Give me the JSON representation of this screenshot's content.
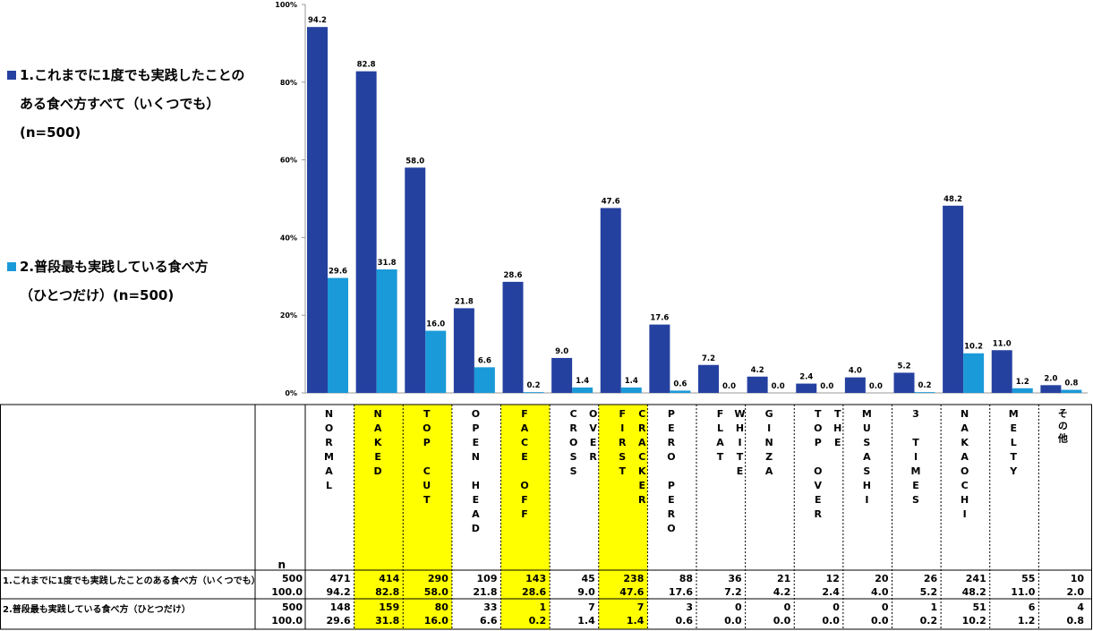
{
  "chart_data": {
    "type": "bar",
    "categories": [
      "NORMAL",
      "NAKED",
      "TOP CUT",
      "OPEN HEAD",
      "FACE OFF",
      "CROSS OVER",
      "FIRST CRACKER",
      "PERO PERO",
      "FLAT WHITE",
      "GINZA",
      "TOP OVER THE",
      "MUSASHI",
      "3 TIMES",
      "NAKAOCHI",
      "MELTY",
      "その他"
    ],
    "series": [
      {
        "name": "1.これまでに1度でも実践したことのある食べ方すべて（いくつでも）(n=500)",
        "color": "#2541a0",
        "values": [
          94.2,
          82.8,
          58.0,
          21.8,
          28.6,
          9.0,
          47.6,
          17.6,
          7.2,
          4.2,
          2.4,
          4.0,
          5.2,
          48.2,
          11.0,
          2.0
        ],
        "value_labels": [
          "94.2",
          "82.8",
          "58.0",
          "21.8",
          "28.6",
          "9.0",
          "47.6",
          "17.6",
          "7.2",
          "4.2",
          "2.4",
          "4.0",
          "5.2",
          "48.2",
          "11.0",
          "2.0"
        ]
      },
      {
        "name": "2.普段最も実践している食べ方（ひとつだけ）(n=500)",
        "color": "#1a9ad8",
        "values": [
          29.6,
          31.8,
          16.0,
          6.6,
          0.2,
          1.4,
          1.4,
          0.6,
          0.0,
          0.0,
          0.0,
          0.0,
          0.2,
          10.2,
          1.2,
          0.8
        ],
        "value_labels": [
          "29.6",
          "31.8",
          "16.0",
          "6.6",
          "0.2",
          "1.4",
          "1.4",
          "0.6",
          "0.0",
          "0.0",
          "0.0",
          "0.0",
          "0.2",
          "10.2",
          "1.2",
          "0.8"
        ]
      }
    ],
    "ylim": [
      0,
      100
    ],
    "yticks": [
      {
        "value": 0,
        "label": "0%"
      },
      {
        "value": 20,
        "label": "20%"
      },
      {
        "value": 40,
        "label": "40%"
      },
      {
        "value": 60,
        "label": "60%"
      },
      {
        "value": 80,
        "label": "80%"
      },
      {
        "value": 100,
        "label": "100%"
      }
    ],
    "highlight_columns": [
      1,
      2,
      4,
      6
    ],
    "highlight_color": "#ffff00"
  },
  "table": {
    "n_header": "n",
    "rows": [
      {
        "label": "1.これまでに1度でも実践したことのある食べ方（いくつでも）",
        "n": 500,
        "n_pct": "100.0",
        "counts": [
          471,
          414,
          290,
          109,
          143,
          45,
          238,
          88,
          36,
          21,
          12,
          20,
          26,
          241,
          55,
          10
        ]
      },
      {
        "label": "2.普段最も実践している食べ方（ひとつだけ）",
        "n": 500,
        "n_pct": "100.0",
        "counts": [
          148,
          159,
          80,
          33,
          1,
          7,
          7,
          3,
          0,
          0,
          0,
          0,
          1,
          51,
          6,
          4
        ]
      }
    ]
  }
}
